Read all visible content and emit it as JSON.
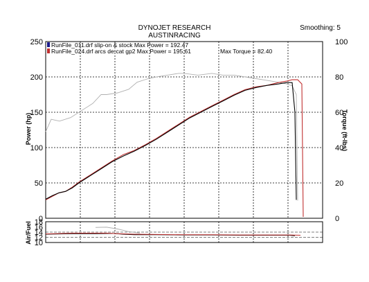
{
  "header": {
    "title": "DYNOJET RESEARCH",
    "subtitle": "AUSTINRACING",
    "smoothing": "Smoothing: 5"
  },
  "legend": {
    "run1": "RunFile_011.drf slip-on & stock Max Power = 192.47",
    "run2": "RunFile_024.drf arcs de-cat gp2 Max Power = 195.61",
    "torque": "Max Torque = 82.40"
  },
  "colors": {
    "run1": "#000000",
    "run2": "#c03030",
    "torque": "#b0b0b0",
    "grid": "#000000"
  },
  "chart_data": [
    {
      "type": "line",
      "title": "",
      "ylabel": "Power (hp)",
      "ylabel_right": "Torque (ft-lbs)",
      "ylim": [
        0,
        250
      ],
      "ylim_right": [
        0,
        100
      ],
      "yticks": [
        "0",
        "50",
        "100",
        "150",
        "200",
        "250"
      ],
      "yticks_right": [
        "0",
        "20",
        "40",
        "60",
        "80",
        "100"
      ],
      "grid": true,
      "legend_position": "top-left",
      "x_scale": "unlabeled",
      "series": [
        {
          "name": "RunFile_011.drf slip-on & stock",
          "axis": "left",
          "points": [
            [
              0.0,
              27
            ],
            [
              0.024,
              32
            ],
            [
              0.048,
              36
            ],
            [
              0.072,
              38
            ],
            [
              0.096,
              43
            ],
            [
              0.12,
              50
            ],
            [
              0.16,
              60
            ],
            [
              0.2,
              70
            ],
            [
              0.24,
              80
            ],
            [
              0.28,
              88
            ],
            [
              0.32,
              95
            ],
            [
              0.36,
              103
            ],
            [
              0.4,
              112
            ],
            [
              0.44,
              122
            ],
            [
              0.48,
              132
            ],
            [
              0.52,
              142
            ],
            [
              0.56,
              150
            ],
            [
              0.6,
              158
            ],
            [
              0.64,
              166
            ],
            [
              0.68,
              174
            ],
            [
              0.72,
              181
            ],
            [
              0.76,
              185
            ],
            [
              0.8,
              188
            ],
            [
              0.84,
              190
            ],
            [
              0.87,
              192
            ],
            [
              0.89,
              192
            ],
            [
              0.9,
              150
            ],
            [
              0.905,
              26
            ]
          ]
        },
        {
          "name": "RunFile_024.drf arcs de-cat gp2",
          "axis": "left",
          "points": [
            [
              0.0,
              26
            ],
            [
              0.024,
              31
            ],
            [
              0.048,
              36
            ],
            [
              0.072,
              38
            ],
            [
              0.096,
              44
            ],
            [
              0.12,
              51
            ],
            [
              0.16,
              61
            ],
            [
              0.2,
              71
            ],
            [
              0.24,
              81
            ],
            [
              0.28,
              90
            ],
            [
              0.32,
              96
            ],
            [
              0.36,
              104
            ],
            [
              0.4,
              113
            ],
            [
              0.44,
              123
            ],
            [
              0.48,
              133
            ],
            [
              0.52,
              143
            ],
            [
              0.56,
              151
            ],
            [
              0.6,
              159
            ],
            [
              0.64,
              167
            ],
            [
              0.68,
              175
            ],
            [
              0.72,
              182
            ],
            [
              0.76,
              186
            ],
            [
              0.8,
              188
            ],
            [
              0.84,
              192
            ],
            [
              0.87,
              194
            ],
            [
              0.89,
              196
            ],
            [
              0.91,
              196
            ],
            [
              0.925,
              190
            ],
            [
              0.93,
              2
            ]
          ]
        },
        {
          "name": "Torque",
          "axis": "right",
          "points": [
            [
              0.0,
              49
            ],
            [
              0.02,
              56
            ],
            [
              0.05,
              55
            ],
            [
              0.09,
              57
            ],
            [
              0.13,
              61
            ],
            [
              0.17,
              65
            ],
            [
              0.2,
              70
            ],
            [
              0.22,
              70
            ],
            [
              0.26,
              71
            ],
            [
              0.3,
              73
            ],
            [
              0.33,
              77
            ],
            [
              0.37,
              79
            ],
            [
              0.4,
              80
            ],
            [
              0.44,
              81
            ],
            [
              0.48,
              82
            ],
            [
              0.5,
              82
            ],
            [
              0.55,
              81
            ],
            [
              0.6,
              82
            ],
            [
              0.64,
              81
            ],
            [
              0.68,
              81
            ],
            [
              0.72,
              80
            ],
            [
              0.76,
              79
            ],
            [
              0.8,
              78
            ],
            [
              0.84,
              77
            ],
            [
              0.87,
              76
            ],
            [
              0.89,
              75
            ],
            [
              0.905,
              70
            ],
            [
              0.91,
              10
            ]
          ]
        }
      ]
    },
    {
      "type": "line",
      "ylabel": "Air/Fuel",
      "ylim": [
        10,
        18
      ],
      "yticks": [
        "18",
        "16",
        "14",
        "12",
        "10"
      ],
      "grid": true,
      "series": [
        {
          "name": "RunFile_011.drf slip-on & stock",
          "points": [
            [
              0.0,
              13.2
            ],
            [
              0.1,
              13.4
            ],
            [
              0.18,
              13.4
            ],
            [
              0.24,
              13.5
            ],
            [
              0.28,
              13.2
            ],
            [
              0.32,
              13.0
            ],
            [
              0.4,
              13.0
            ],
            [
              0.5,
              12.9
            ],
            [
              0.6,
              12.9
            ],
            [
              0.7,
              12.8
            ],
            [
              0.8,
              12.8
            ],
            [
              0.88,
              12.8
            ],
            [
              0.9,
              12.6
            ]
          ]
        },
        {
          "name": "RunFile_024.drf arcs de-cat gp2",
          "points": [
            [
              0.0,
              13.3
            ],
            [
              0.1,
              13.6
            ],
            [
              0.18,
              13.6
            ],
            [
              0.22,
              13.6
            ],
            [
              0.26,
              13.4
            ],
            [
              0.32,
              13.2
            ],
            [
              0.4,
              13.1
            ],
            [
              0.5,
              13.0
            ],
            [
              0.6,
              13.0
            ],
            [
              0.7,
              12.9
            ],
            [
              0.8,
              12.9
            ],
            [
              0.88,
              12.9
            ],
            [
              0.92,
              12.8
            ]
          ]
        },
        {
          "name": "Air/Fuel (gray)",
          "points": [
            [
              0.18,
              15.8
            ],
            [
              0.22,
              15.9
            ],
            [
              0.26,
              15.2
            ],
            [
              0.3,
              14.2
            ],
            [
              0.34,
              13.6
            ]
          ]
        }
      ]
    }
  ]
}
